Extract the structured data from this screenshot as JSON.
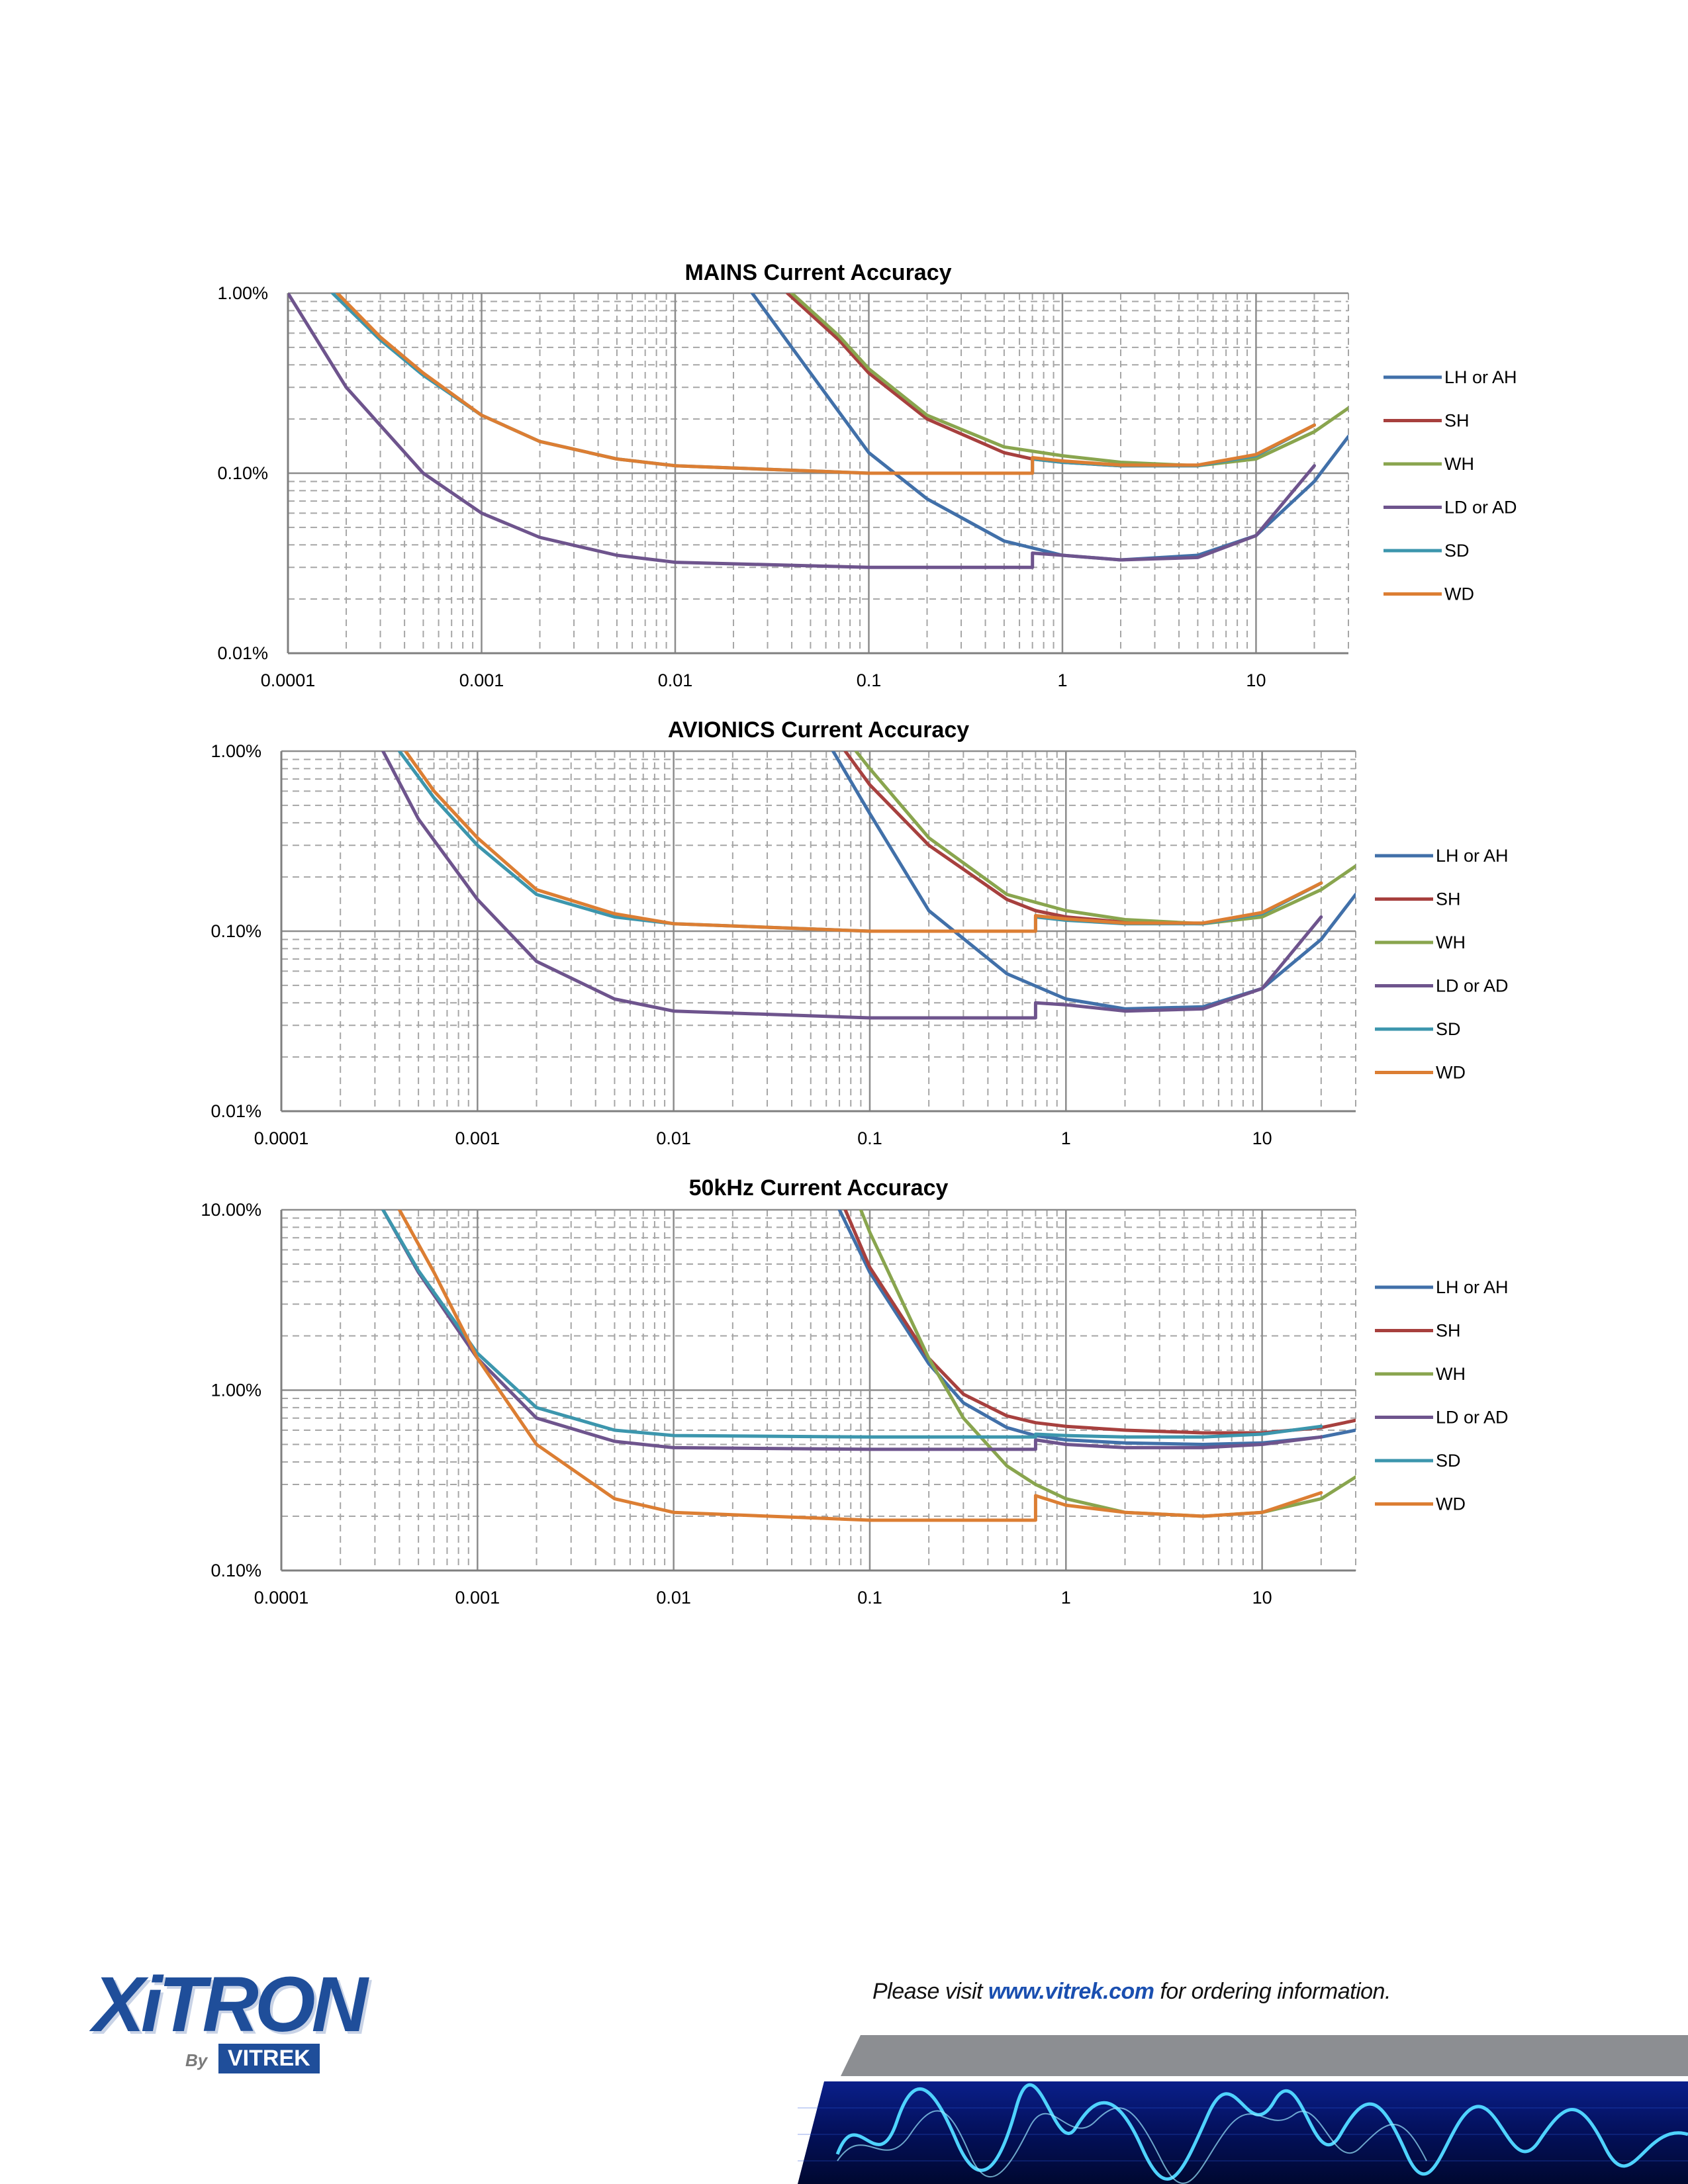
{
  "x_ticks": [
    "0.0001",
    "0.001",
    "0.01",
    "0.1",
    "1",
    "10"
  ],
  "legend": [
    "LH or AH",
    "SH",
    "WH",
    "LD or AD",
    "SD",
    "WD"
  ],
  "series_colors": {
    "LH or AH": "#4170a9",
    "SH": "#a7403e",
    "WH": "#89a54e",
    "LD or AD": "#6e548d",
    "SD": "#3c96ad",
    "WD": "#dc7e33"
  },
  "chart_data": [
    {
      "type": "line",
      "title": "MAINS Current Accuracy",
      "x_scale": "log",
      "y_scale": "log",
      "xlim": [
        0.0001,
        30
      ],
      "ylim": [
        0.01,
        1.0
      ],
      "y_ticks": [
        "0.01%",
        "0.10%",
        "1.00%"
      ],
      "grid": true,
      "legend_position": "right",
      "series": [
        {
          "name": "LH or AH",
          "x": [
            0.025,
            0.05,
            0.1,
            0.2,
            0.5,
            1,
            2,
            5,
            10,
            20,
            30
          ],
          "y": [
            1.0,
            0.36,
            0.13,
            0.072,
            0.042,
            0.035,
            0.033,
            0.035,
            0.045,
            0.09,
            0.16
          ]
        },
        {
          "name": "SH",
          "x": [
            0.038,
            0.07,
            0.1,
            0.2,
            0.5,
            0.7,
            1,
            2,
            5,
            10,
            20
          ],
          "y": [
            1.0,
            0.55,
            0.36,
            0.2,
            0.13,
            0.12,
            0.115,
            0.11,
            0.11,
            0.125,
            0.185
          ]
        },
        {
          "name": "WH",
          "x": [
            0.04,
            0.07,
            0.1,
            0.2,
            0.5,
            1,
            2,
            5,
            10,
            20,
            30
          ],
          "y": [
            1.0,
            0.58,
            0.38,
            0.21,
            0.14,
            0.125,
            0.115,
            0.11,
            0.12,
            0.17,
            0.23
          ]
        },
        {
          "name": "LD or AD",
          "x": [
            0.0001,
            0.0002,
            0.0005,
            0.001,
            0.002,
            0.005,
            0.01,
            0.1,
            0.7,
            0.7,
            1,
            2,
            5,
            10,
            20
          ],
          "y": [
            1.0,
            0.3,
            0.1,
            0.06,
            0.044,
            0.035,
            0.032,
            0.03,
            0.03,
            0.036,
            0.035,
            0.033,
            0.034,
            0.045,
            0.11
          ]
        },
        {
          "name": "SD",
          "x": [
            0.00017,
            0.0003,
            0.0005,
            0.001,
            0.002,
            0.005,
            0.01,
            0.1,
            0.7,
            0.7,
            1,
            2,
            5,
            10,
            20
          ],
          "y": [
            1.0,
            0.55,
            0.35,
            0.21,
            0.15,
            0.12,
            0.11,
            0.1,
            0.1,
            0.12,
            0.115,
            0.11,
            0.11,
            0.125,
            0.185
          ]
        },
        {
          "name": "WD",
          "x": [
            0.00018,
            0.0003,
            0.0005,
            0.001,
            0.002,
            0.005,
            0.01,
            0.1,
            0.7,
            0.7,
            1,
            2,
            5,
            10,
            20
          ],
          "y": [
            1.0,
            0.57,
            0.36,
            0.21,
            0.15,
            0.12,
            0.11,
            0.1,
            0.1,
            0.122,
            0.117,
            0.111,
            0.111,
            0.127,
            0.185
          ]
        }
      ]
    },
    {
      "type": "line",
      "title": "AVIONICS Current Accuracy",
      "x_scale": "log",
      "y_scale": "log",
      "xlim": [
        0.0001,
        30
      ],
      "ylim": [
        0.01,
        1.0
      ],
      "y_ticks": [
        "0.01%",
        "0.10%",
        "1.00%"
      ],
      "grid": true,
      "legend_position": "right",
      "series": [
        {
          "name": "LH or AH",
          "x": [
            0.065,
            0.1,
            0.2,
            0.5,
            1,
            2,
            5,
            10,
            20,
            30
          ],
          "y": [
            1.0,
            0.45,
            0.13,
            0.058,
            0.042,
            0.037,
            0.038,
            0.048,
            0.09,
            0.16
          ]
        },
        {
          "name": "SH",
          "x": [
            0.075,
            0.1,
            0.2,
            0.5,
            0.7,
            1,
            2,
            5,
            10,
            20
          ],
          "y": [
            1.0,
            0.65,
            0.3,
            0.15,
            0.13,
            0.12,
            0.112,
            0.11,
            0.125,
            0.185
          ]
        },
        {
          "name": "WH",
          "x": [
            0.085,
            0.1,
            0.2,
            0.5,
            1,
            2,
            5,
            10,
            20,
            30
          ],
          "y": [
            1.0,
            0.8,
            0.33,
            0.16,
            0.13,
            0.116,
            0.11,
            0.12,
            0.17,
            0.23
          ]
        },
        {
          "name": "LD or AD",
          "x": [
            0.00033,
            0.0005,
            0.001,
            0.002,
            0.005,
            0.01,
            0.1,
            0.7,
            0.7,
            1,
            2,
            5,
            10,
            20
          ],
          "y": [
            1.0,
            0.42,
            0.15,
            0.068,
            0.042,
            0.036,
            0.033,
            0.033,
            0.04,
            0.039,
            0.036,
            0.037,
            0.048,
            0.12
          ]
        },
        {
          "name": "SD",
          "x": [
            0.0004,
            0.0006,
            0.001,
            0.002,
            0.005,
            0.01,
            0.1,
            0.7,
            0.7,
            1,
            2,
            5,
            10,
            20
          ],
          "y": [
            1.0,
            0.55,
            0.3,
            0.16,
            0.12,
            0.11,
            0.1,
            0.1,
            0.12,
            0.115,
            0.11,
            0.11,
            0.125,
            0.185
          ]
        },
        {
          "name": "WD",
          "x": [
            0.00043,
            0.0006,
            0.001,
            0.002,
            0.005,
            0.01,
            0.1,
            0.7,
            0.7,
            1,
            2,
            5,
            10,
            20
          ],
          "y": [
            1.0,
            0.6,
            0.33,
            0.17,
            0.125,
            0.11,
            0.1,
            0.1,
            0.122,
            0.117,
            0.111,
            0.111,
            0.127,
            0.185
          ]
        }
      ]
    },
    {
      "type": "line",
      "title": "50kHz Current Accuracy",
      "x_scale": "log",
      "y_scale": "log",
      "xlim": [
        0.0001,
        30
      ],
      "ylim": [
        0.1,
        10.0
      ],
      "y_ticks": [
        "0.10%",
        "1.00%",
        "10.00%"
      ],
      "grid": true,
      "legend_position": "right",
      "series": [
        {
          "name": "LH or AH",
          "x": [
            0.07,
            0.1,
            0.2,
            0.3,
            0.5,
            0.7,
            1,
            2,
            5,
            10,
            20,
            30
          ],
          "y": [
            10.0,
            4.5,
            1.4,
            0.85,
            0.62,
            0.56,
            0.53,
            0.51,
            0.5,
            0.51,
            0.55,
            0.6
          ]
        },
        {
          "name": "SH",
          "x": [
            0.075,
            0.1,
            0.2,
            0.3,
            0.5,
            0.7,
            1,
            2,
            5,
            10,
            20,
            30
          ],
          "y": [
            10.0,
            4.8,
            1.5,
            0.95,
            0.72,
            0.66,
            0.63,
            0.6,
            0.58,
            0.58,
            0.62,
            0.68
          ]
        },
        {
          "name": "WH",
          "x": [
            0.09,
            0.1,
            0.2,
            0.3,
            0.5,
            0.7,
            1,
            2,
            5,
            10,
            20,
            30
          ],
          "y": [
            10.0,
            7.5,
            1.5,
            0.7,
            0.38,
            0.3,
            0.25,
            0.21,
            0.2,
            0.21,
            0.25,
            0.33
          ]
        },
        {
          "name": "LD or AD",
          "x": [
            0.00033,
            0.0005,
            0.001,
            0.002,
            0.005,
            0.01,
            0.1,
            0.7,
            0.7,
            1,
            2,
            5,
            10,
            20
          ],
          "y": [
            10.0,
            4.5,
            1.5,
            0.7,
            0.52,
            0.48,
            0.47,
            0.47,
            0.53,
            0.5,
            0.48,
            0.48,
            0.5,
            0.55
          ]
        },
        {
          "name": "SD",
          "x": [
            0.00033,
            0.0005,
            0.001,
            0.002,
            0.005,
            0.01,
            0.1,
            0.7,
            0.7,
            1,
            2,
            5,
            10,
            20
          ],
          "y": [
            10.0,
            4.6,
            1.6,
            0.8,
            0.6,
            0.56,
            0.55,
            0.55,
            0.57,
            0.56,
            0.55,
            0.55,
            0.57,
            0.63
          ]
        },
        {
          "name": "WD",
          "x": [
            0.0004,
            0.0006,
            0.001,
            0.002,
            0.005,
            0.01,
            0.1,
            0.7,
            0.7,
            1,
            2,
            5,
            10,
            20
          ],
          "y": [
            10.0,
            4.5,
            1.5,
            0.5,
            0.25,
            0.21,
            0.19,
            0.19,
            0.26,
            0.23,
            0.21,
            0.2,
            0.21,
            0.27
          ]
        }
      ]
    }
  ],
  "footer": {
    "prefix": "Please visit ",
    "link": "www.vitrek.com",
    "suffix": " for ordering information.",
    "logo_main": "XiTRON",
    "logo_by": "By",
    "logo_badge": "VITREK"
  }
}
